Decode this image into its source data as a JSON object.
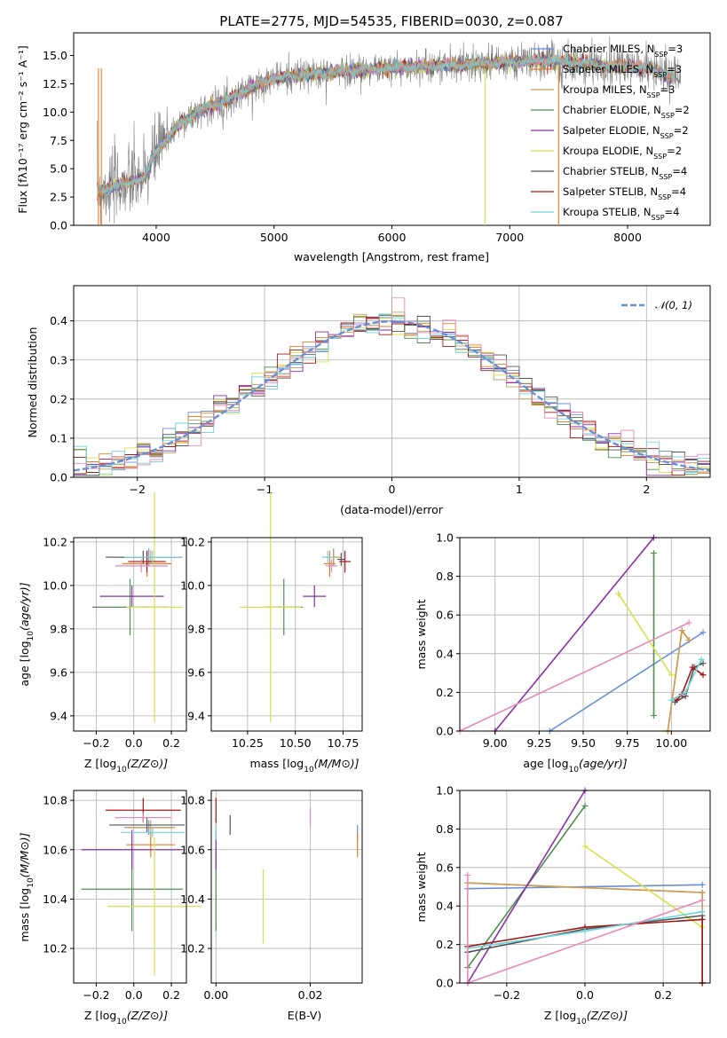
{
  "colors": [
    "#6a8fd8",
    "#e87d2a",
    "#c8a05a",
    "#4f8f4f",
    "#8a2fa8",
    "#d6e04a",
    "#555555",
    "#a01818",
    "#6fd3dc",
    "#e68ab6"
  ],
  "flux_color": "#808080",
  "panels": {
    "spectrum": {
      "title": "PLATE=2775, MJD=54535, FIBERID=0030, z=0.087",
      "xlabel": "wavelength [Angstrom, rest frame]",
      "ylabel": "Flux [f",
      "ylabel_full": "Flux [fλ10⁻¹⁷ erg cm⁻² s⁻¹ A⁻¹]",
      "xticks": [
        "4000",
        "5000",
        "6000",
        "7000",
        "8000"
      ],
      "yticks": [
        "0.0",
        "2.5",
        "5.0",
        "7.5",
        "10.0",
        "12.5",
        "15.0"
      ],
      "legend": [
        "Chabrier MILES, N",
        "Salpeter MILES, N",
        "Kroupa MILES, N",
        "Chabrier ELODIE, N",
        "Salpeter ELODIE, N",
        "Kroupa ELODIE, N",
        "Chabrier STELIB, N",
        "Salpeter STELIB, N",
        "Kroupa STELIB, N"
      ],
      "legend_sub": "SSP",
      "legend_n": [
        "=3",
        "=3",
        "=3",
        "=2",
        "=2",
        "=2",
        "=4",
        "=4",
        "=4"
      ]
    },
    "hist": {
      "xlabel": "(data-model)/error",
      "ylabel": "Normed distribution",
      "xticks": [
        "−2",
        "−1",
        "0",
        "1",
        "2"
      ],
      "yticks": [
        "0.0",
        "0.1",
        "0.2",
        "0.3",
        "0.4"
      ],
      "legend": "𝒩(0, 1)"
    },
    "zage": {
      "xlabel": "Z [log",
      "ylabel": "age  [log",
      "xticks": [
        "−0.2",
        "0.0",
        "0.2"
      ],
      "yticks": [
        "9.4",
        "9.6",
        "9.8",
        "10.0",
        "10.2"
      ]
    },
    "massage": {
      "xlabel": "mass [log",
      "xticks": [
        "10.25",
        "10.50",
        "10.75"
      ],
      "yticks": [
        "9.4",
        "9.6",
        "9.8",
        "10.0",
        "10.2"
      ]
    },
    "agew": {
      "xlabel": "age  [log",
      "ylabel": "mass weight",
      "xticks": [
        "9.00",
        "9.25",
        "9.50",
        "9.75",
        "10.00"
      ],
      "yticks": [
        "0.0",
        "0.2",
        "0.4",
        "0.6",
        "0.8",
        "1.0"
      ]
    },
    "zmass": {
      "xlabel": "Z [log",
      "ylabel": "mass [log",
      "xticks": [
        "−0.2",
        "0.0",
        "0.2"
      ],
      "yticks": [
        "10.2",
        "10.4",
        "10.6",
        "10.8"
      ]
    },
    "ebvmass": {
      "xlabel": "E(B-V)",
      "xticks": [
        "0.00",
        "0.02"
      ],
      "yticks": [
        "10.2",
        "10.4",
        "10.6",
        "10.8"
      ]
    },
    "zw": {
      "xlabel": "Z [log",
      "ylabel": "mass weight",
      "xticks": [
        "−0.2",
        "0.0",
        "0.2"
      ],
      "yticks": [
        "0.0",
        "0.2",
        "0.4",
        "0.6",
        "0.8",
        "1.0"
      ]
    }
  },
  "chart_data": [
    {
      "type": "line",
      "title": "PLATE=2775, MJD=54535, FIBERID=0030, z=0.087",
      "xlabel": "wavelength [Angstrom, rest frame]",
      "ylabel": "Flux [fλ10⁻¹⁷ erg cm⁻² s⁻¹ A⁻¹]",
      "xlim": [
        3300,
        8700
      ],
      "ylim": [
        0,
        17
      ],
      "continuum_x": [
        3500,
        3700,
        3900,
        4000,
        4200,
        4400,
        4600,
        4800,
        5000,
        5200,
        5400,
        5600,
        5800,
        6000,
        6200,
        6400,
        6600,
        6800,
        7000,
        7200,
        7400,
        7600,
        7800,
        8000,
        8200,
        8400
      ],
      "continuum_y": [
        3.0,
        3.6,
        4.2,
        6.5,
        9.0,
        10.3,
        11.0,
        12.2,
        13.0,
        13.2,
        13.4,
        13.6,
        13.8,
        13.9,
        14.0,
        14.1,
        14.2,
        14.3,
        14.4,
        14.5,
        14.5,
        14.3,
        14.1,
        14.0,
        13.8,
        13.0
      ],
      "legend": [
        "Chabrier MILES, NSSP=3",
        "Salpeter MILES, NSSP=3",
        "Kroupa MILES, NSSP=3",
        "Chabrier ELODIE, NSSP=2",
        "Salpeter ELODIE, NSSP=2",
        "Kroupa ELODIE, NSSP=2",
        "Chabrier STELIB, NSSP=4",
        "Salpeter STELIB, NSSP=4",
        "Kroupa STELIB, NSSP=4"
      ]
    },
    {
      "type": "bar",
      "xlabel": "(data-model)/error",
      "ylabel": "Normed distribution",
      "xlim": [
        -2.5,
        2.5
      ],
      "ylim": [
        0,
        0.49
      ],
      "bin_width": 0.1,
      "gaussian": {
        "name": "𝒩(0, 1)",
        "mean": 0,
        "sigma": 1
      }
    },
    {
      "type": "scatter",
      "xlabel": "Z [log10(Z/Z⊙)]",
      "ylabel": "age [log10(age/yr)]",
      "xlim": [
        -0.32,
        0.28
      ],
      "ylim": [
        9.33,
        10.22
      ],
      "points": [
        {
          "x": 0.08,
          "y": 10.13,
          "xerr": 0.15,
          "yerr": 0.04
        },
        {
          "x": 0.07,
          "y": 10.1,
          "xerr": 0.13,
          "yerr": 0.06
        },
        {
          "x": 0.09,
          "y": 10.13,
          "xerr": 0.17,
          "yerr": 0.03
        },
        {
          "x": -0.02,
          "y": 9.9,
          "xerr": 0.2,
          "yerr": 0.13
        },
        {
          "x": -0.01,
          "y": 9.95,
          "xerr": 0.17,
          "yerr": 0.05
        },
        {
          "x": 0.11,
          "y": 9.9,
          "xerr": 0.15,
          "yerr": 0.53
        },
        {
          "x": 0.05,
          "y": 10.13,
          "xerr": 0.2,
          "yerr": 0.03
        },
        {
          "x": 0.07,
          "y": 10.11,
          "xerr": 0.1,
          "yerr": 0.05
        },
        {
          "x": 0.1,
          "y": 10.13,
          "xerr": 0.15,
          "yerr": 0.03
        },
        {
          "x": 0.04,
          "y": 10.09,
          "xerr": 0.14,
          "yerr": 0.03
        }
      ]
    },
    {
      "type": "scatter",
      "xlabel": "mass [log10(M/M⊙)]",
      "ylabel": "age [log10(age/yr)]",
      "xlim": [
        10.06,
        10.85
      ],
      "ylim": [
        9.33,
        10.22
      ],
      "points": [
        {
          "x": 10.7,
          "y": 10.13,
          "xerr": 0.04,
          "yerr": 0.04
        },
        {
          "x": 10.68,
          "y": 10.1,
          "xerr": 0.03,
          "yerr": 0.06
        },
        {
          "x": 10.7,
          "y": 10.13,
          "xerr": 0.04,
          "yerr": 0.03
        },
        {
          "x": 10.44,
          "y": 9.9,
          "xerr": 0.1,
          "yerr": 0.13
        },
        {
          "x": 10.6,
          "y": 9.95,
          "xerr": 0.06,
          "yerr": 0.05
        },
        {
          "x": 10.37,
          "y": 9.9,
          "xerr": 0.16,
          "yerr": 0.53
        },
        {
          "x": 10.74,
          "y": 10.12,
          "xerr": 0.02,
          "yerr": 0.03
        },
        {
          "x": 10.76,
          "y": 10.11,
          "xerr": 0.03,
          "yerr": 0.05
        },
        {
          "x": 10.67,
          "y": 10.13,
          "xerr": 0.03,
          "yerr": 0.03
        },
        {
          "x": 10.69,
          "y": 10.09,
          "xerr": 0.03,
          "yerr": 0.03
        }
      ]
    },
    {
      "type": "line",
      "xlabel": "age [log10(age/yr)]",
      "ylabel": "mass weight",
      "xlim": [
        8.8,
        10.22
      ],
      "ylim": [
        0,
        1
      ],
      "series": [
        {
          "x": [
            9.31,
            10.18
          ],
          "y": [
            0.0,
            0.51
          ]
        },
        {
          "x": [
            9.98,
            10.06,
            10.1
          ],
          "y": [
            0.0,
            0.52,
            0.47
          ]
        },
        {
          "x": [
            9.98,
            10.06,
            10.1
          ],
          "y": [
            0.0,
            0.52,
            0.47
          ]
        },
        {
          "x": [
            9.9,
            9.9
          ],
          "y": [
            0.08,
            0.92
          ]
        },
        {
          "x": [
            9.0,
            9.9
          ],
          "y": [
            0.0,
            1.0
          ]
        },
        {
          "x": [
            9.7,
            10.0
          ],
          "y": [
            0.71,
            0.29
          ]
        },
        {
          "x": [
            10.02,
            10.08,
            10.13,
            10.18
          ],
          "y": [
            0.15,
            0.18,
            0.33,
            0.35
          ]
        },
        {
          "x": [
            10.03,
            10.06,
            10.12,
            10.18
          ],
          "y": [
            0.16,
            0.19,
            0.33,
            0.29
          ]
        },
        {
          "x": [
            10.0,
            10.08,
            10.17
          ],
          "y": [
            0.16,
            0.2,
            0.37
          ]
        },
        {
          "x": [
            8.8,
            10.1
          ],
          "y": [
            0.0,
            0.56
          ]
        }
      ]
    },
    {
      "type": "scatter",
      "xlabel": "Z [log10(Z/Z⊙)]",
      "ylabel": "mass [log10(M/M⊙)]",
      "xlim": [
        -0.32,
        0.28
      ],
      "ylim": [
        10.06,
        10.84
      ],
      "points": [
        {
          "x": 0.08,
          "y": 10.69,
          "xerr": 0.13,
          "yerr": 0.03
        },
        {
          "x": 0.09,
          "y": 10.62,
          "xerr": 0.13,
          "yerr": 0.05
        },
        {
          "x": 0.09,
          "y": 10.69,
          "xerr": 0.13,
          "yerr": 0.03
        },
        {
          "x": -0.01,
          "y": 10.44,
          "xerr": 0.27,
          "yerr": 0.17
        },
        {
          "x": -0.01,
          "y": 10.6,
          "xerr": 0.27,
          "yerr": 0.08
        },
        {
          "x": 0.11,
          "y": 10.37,
          "xerr": 0.25,
          "yerr": 0.28
        },
        {
          "x": 0.07,
          "y": 10.7,
          "xerr": 0.2,
          "yerr": 0.03
        },
        {
          "x": 0.05,
          "y": 10.76,
          "xerr": 0.2,
          "yerr": 0.05
        },
        {
          "x": 0.1,
          "y": 10.67,
          "xerr": 0.17,
          "yerr": 0.02
        },
        {
          "x": 0.05,
          "y": 10.73,
          "xerr": 0.15,
          "yerr": 0.02
        }
      ]
    },
    {
      "type": "scatter",
      "xlabel": "E(B-V)",
      "ylabel": "mass [log10(M/M⊙)]",
      "xlim": [
        -0.001,
        0.031
      ],
      "ylim": [
        10.06,
        10.84
      ],
      "points": [
        {
          "x": 0.03,
          "y": 10.67,
          "xerr": 0,
          "yerr": 0.03
        },
        {
          "x": 0.03,
          "y": 10.62,
          "xerr": 0,
          "yerr": 0.05
        },
        {
          "x": 0.0,
          "y": 10.7,
          "xerr": 0,
          "yerr": 0.03
        },
        {
          "x": 0.0,
          "y": 10.44,
          "xerr": 0,
          "yerr": 0.17
        },
        {
          "x": 0.0,
          "y": 10.6,
          "xerr": 0,
          "yerr": 0.08
        },
        {
          "x": 0.01,
          "y": 10.37,
          "xerr": 0,
          "yerr": 0.15
        },
        {
          "x": 0.003,
          "y": 10.7,
          "xerr": 0,
          "yerr": 0.04
        },
        {
          "x": 0.0,
          "y": 10.76,
          "xerr": 0,
          "yerr": 0.05
        },
        {
          "x": 0.0,
          "y": 10.67,
          "xerr": 0,
          "yerr": 0.03
        },
        {
          "x": 0.02,
          "y": 10.73,
          "xerr": 0,
          "yerr": 0.04
        }
      ]
    },
    {
      "type": "line",
      "xlabel": "Z [log10(Z/Z⊙)]",
      "ylabel": "mass weight",
      "xlim": [
        -0.32,
        0.32
      ],
      "ylim": [
        0,
        1
      ],
      "series": [
        {
          "x": [
            -0.3,
            0.3
          ],
          "y": [
            0.49,
            0.51
          ]
        },
        {
          "x": [
            -0.3,
            0.3,
            0.3
          ],
          "y": [
            0.52,
            0.47,
            0.0
          ]
        },
        {
          "x": [
            -0.3,
            0.3,
            0.3
          ],
          "y": [
            0.52,
            0.47,
            0.0
          ]
        },
        {
          "x": [
            -0.3,
            0.0
          ],
          "y": [
            0.08,
            0.92
          ]
        },
        {
          "x": [
            -0.3,
            0.0
          ],
          "y": [
            0.0,
            1.0
          ]
        },
        {
          "x": [
            0.0,
            0.3
          ],
          "y": [
            0.71,
            0.29
          ]
        },
        {
          "x": [
            -0.3,
            0.0,
            0.3,
            0.3
          ],
          "y": [
            0.16,
            0.28,
            0.35,
            0.0
          ]
        },
        {
          "x": [
            -0.3,
            0.0,
            0.3,
            0.3
          ],
          "y": [
            0.19,
            0.29,
            0.33,
            0.0
          ]
        },
        {
          "x": [
            -0.3,
            0.0,
            0.3
          ],
          "y": [
            0.18,
            0.27,
            0.37
          ]
        },
        {
          "x": [
            -0.3,
            -0.3,
            0.3
          ],
          "y": [
            0.56,
            0.0,
            0.43
          ]
        }
      ]
    }
  ]
}
